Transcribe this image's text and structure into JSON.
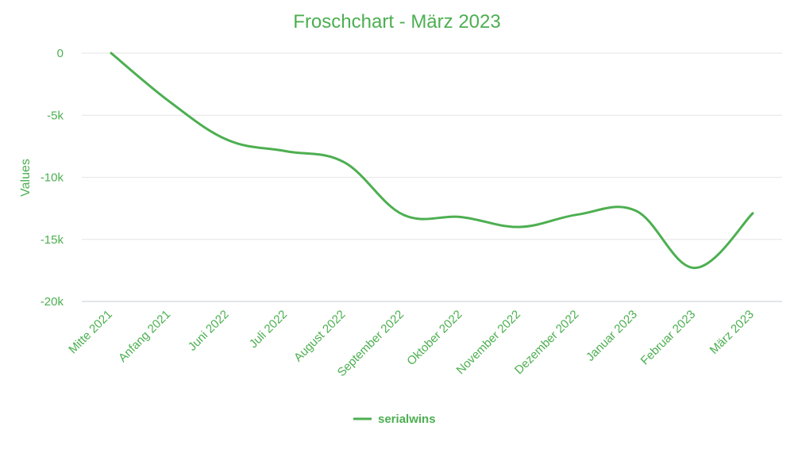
{
  "chart_data": {
    "type": "line",
    "title": "Froschchart - März 2023",
    "xlabel": "",
    "ylabel": "Values",
    "ylim": [
      -20000,
      0
    ],
    "yticks": [
      0,
      -5000,
      -10000,
      -15000,
      -20000
    ],
    "ytick_labels": [
      "0",
      "-5k",
      "-10k",
      "-15k",
      "-20k"
    ],
    "grid": true,
    "legend_position": "bottom",
    "categories": [
      "Mitte 2021",
      "Anfang 2021",
      "Juni 2022",
      "Juli 2022",
      "August 2022",
      "September 2022",
      "Oktober 2022",
      "November 2022",
      "Dezember 2022",
      "Januar 2023",
      "Februar 2023",
      "März 2023"
    ],
    "series": [
      {
        "name": "serialwins",
        "color": "#4caf50",
        "values": [
          0,
          -3900,
          -7000,
          -7900,
          -8800,
          -13000,
          -13200,
          -14000,
          -13000,
          -12700,
          -17300,
          -12900
        ]
      }
    ]
  },
  "colors": {
    "accent": "#4caf50",
    "grid": "#e6e6e6"
  }
}
